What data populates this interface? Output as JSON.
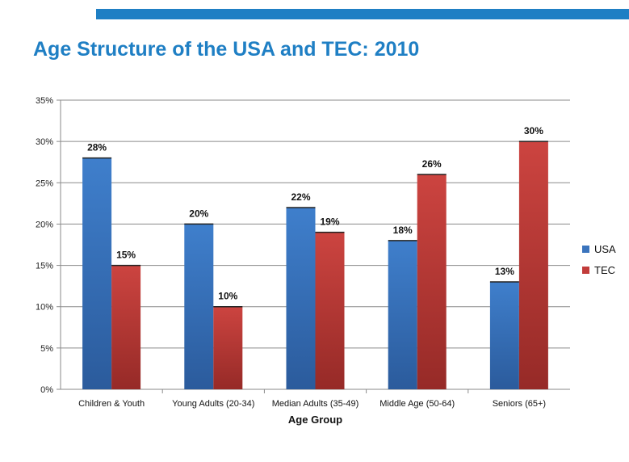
{
  "slide": {
    "title": "Age Structure of the USA and TEC: 2010",
    "accent_color": "#1f7fc4"
  },
  "chart_data": {
    "type": "bar",
    "categories": [
      "Children & Youth",
      "Young Adults (20-34)",
      "Median Adults (35-49)",
      "Middle Age (50-64)",
      "Seniors (65+)"
    ],
    "series": [
      {
        "name": "USA",
        "values": [
          28,
          20,
          22,
          18,
          13
        ],
        "labels": [
          "28%",
          "20%",
          "22%",
          "18%",
          "13%"
        ],
        "color": "#3b74bd"
      },
      {
        "name": "TEC",
        "values": [
          15,
          10,
          19,
          26,
          30
        ],
        "labels": [
          "15%",
          "10%",
          "19%",
          "26%",
          "30%"
        ],
        "color": "#c23c3a"
      }
    ],
    "xlabel": "Age Group",
    "ylabel": "",
    "ylim": [
      0,
      35
    ],
    "yticks": [
      0,
      5,
      10,
      15,
      20,
      25,
      30,
      35
    ],
    "ytick_labels": [
      "0%",
      "5%",
      "10%",
      "15%",
      "20%",
      "25%",
      "30%",
      "35%"
    ],
    "grid": true,
    "legend_position": "right"
  }
}
